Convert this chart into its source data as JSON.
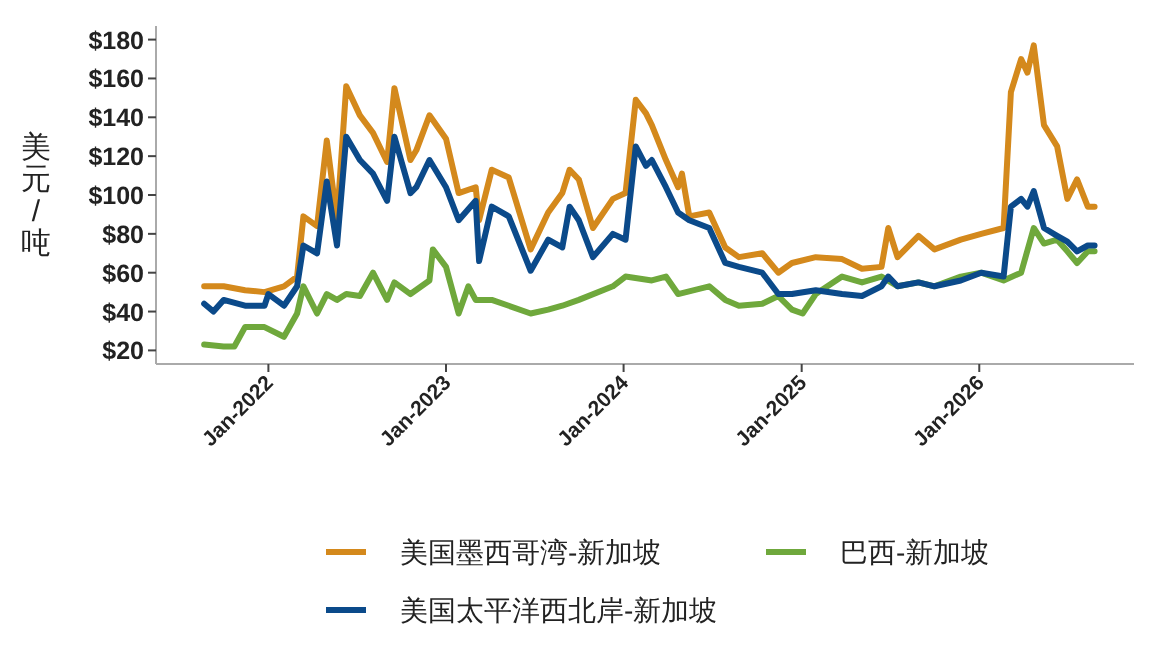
{
  "chart_data": {
    "type": "line",
    "ylabel": "美元/吨",
    "xlim": [
      "2021-05-15",
      "2026-11-15"
    ],
    "ylim": [
      13,
      187
    ],
    "xticks": [
      {
        "value": "2022-01-01",
        "label": "Jan-2022"
      },
      {
        "value": "2023-01-01",
        "label": "Jan-2023"
      },
      {
        "value": "2024-01-01",
        "label": "Jan-2024"
      },
      {
        "value": "2025-01-01",
        "label": "Jan-2025"
      },
      {
        "value": "2026-01-01",
        "label": "Jan-2026"
      }
    ],
    "yticks": [
      {
        "value": 20,
        "label": "$20"
      },
      {
        "value": 40,
        "label": "$40"
      },
      {
        "value": 60,
        "label": "$60"
      },
      {
        "value": 80,
        "label": "$80"
      },
      {
        "value": 100,
        "label": "$100"
      },
      {
        "value": 120,
        "label": "$120"
      },
      {
        "value": 140,
        "label": "$140"
      },
      {
        "value": 160,
        "label": "$160"
      },
      {
        "value": 180,
        "label": "$180"
      }
    ],
    "grid": false,
    "legend": "bottom",
    "marker": "none",
    "line_style": "solid",
    "series": [
      {
        "name": "美国墨西哥湾-新加坡",
        "color": "#d4891c",
        "x": [
          "2021-08-22",
          "2021-10-01",
          "2021-11-14",
          "2021-12-24",
          "2022-02-02",
          "2022-03-01",
          "2022-03-14",
          "2022-04-11",
          "2022-05-01",
          "2022-05-22",
          "2022-06-10",
          "2022-07-08",
          "2022-08-04",
          "2022-09-02",
          "2022-09-17",
          "2022-10-20",
          "2022-11-01",
          "2022-11-28",
          "2023-01-01",
          "2023-01-27",
          "2023-03-03",
          "2023-03-10",
          "2023-04-05",
          "2023-05-10",
          "2023-06-24",
          "2023-07-30",
          "2023-08-28",
          "2023-09-12",
          "2023-10-01",
          "2023-10-30",
          "2023-12-10",
          "2024-01-05",
          "2024-01-26",
          "2024-02-16",
          "2024-02-28",
          "2024-03-28",
          "2024-04-22",
          "2024-04-30",
          "2024-05-15",
          "2024-06-25",
          "2024-07-28",
          "2024-08-25",
          "2024-10-12",
          "2024-11-14",
          "2024-12-12",
          "2025-01-30",
          "2025-03-25",
          "2025-05-05",
          "2025-06-14",
          "2025-06-28",
          "2025-07-17",
          "2025-08-29",
          "2025-10-01",
          "2025-11-24",
          "2026-01-05",
          "2026-02-20",
          "2026-03-07",
          "2026-03-28",
          "2026-04-10",
          "2026-04-23",
          "2026-05-14",
          "2026-06-10",
          "2026-07-01",
          "2026-07-21",
          "2026-08-12",
          "2026-08-26"
        ],
        "values": [
          53,
          53,
          51,
          50,
          53,
          58,
          89,
          84,
          128,
          87,
          156,
          141,
          132,
          117,
          155,
          118,
          123,
          141,
          129,
          101,
          104,
          87,
          113,
          109,
          72,
          91,
          101,
          113,
          108,
          83,
          98,
          101,
          149,
          142,
          136,
          118,
          104,
          111,
          89,
          91,
          73,
          68,
          70,
          60,
          65,
          68,
          67,
          62,
          63,
          83,
          68,
          79,
          72,
          77,
          80,
          83,
          153,
          170,
          163,
          177,
          136,
          125,
          98,
          108,
          94,
          94
        ]
      },
      {
        "name": "巴西-新加坡",
        "color": "#6fa83c",
        "x": [
          "2021-08-22",
          "2021-10-01",
          "2021-10-23",
          "2021-11-14",
          "2021-12-24",
          "2022-02-02",
          "2022-03-01",
          "2022-03-14",
          "2022-04-11",
          "2022-05-01",
          "2022-05-22",
          "2022-06-10",
          "2022-07-08",
          "2022-08-04",
          "2022-09-02",
          "2022-09-17",
          "2022-10-20",
          "2022-11-28",
          "2022-12-05",
          "2023-01-01",
          "2023-01-27",
          "2023-02-16",
          "2023-03-03",
          "2023-04-05",
          "2023-05-10",
          "2023-06-24",
          "2023-07-30",
          "2023-08-28",
          "2023-10-01",
          "2023-12-10",
          "2024-01-05",
          "2024-02-28",
          "2024-03-28",
          "2024-04-22",
          "2024-06-25",
          "2024-07-28",
          "2024-08-25",
          "2024-10-12",
          "2024-11-14",
          "2024-12-12",
          "2025-01-03",
          "2025-01-30",
          "2025-03-25",
          "2025-05-05",
          "2025-06-14",
          "2025-07-17",
          "2025-08-29",
          "2025-10-01",
          "2025-11-24",
          "2026-01-05",
          "2026-02-20",
          "2026-03-28",
          "2026-04-23",
          "2026-05-14",
          "2026-06-10",
          "2026-07-01",
          "2026-07-21",
          "2026-08-12",
          "2026-08-26"
        ],
        "values": [
          23,
          22,
          22,
          32,
          32,
          27,
          39,
          53,
          39,
          49,
          46,
          49,
          48,
          60,
          46,
          55,
          49,
          56,
          72,
          63,
          39,
          53,
          46,
          46,
          43,
          39,
          41,
          43,
          46,
          53,
          58,
          56,
          58,
          49,
          53,
          46,
          43,
          44,
          48,
          41,
          39,
          49,
          58,
          55,
          58,
          53,
          55,
          53,
          58,
          60,
          56,
          60,
          83,
          75,
          77,
          71,
          65,
          71,
          71
        ]
      },
      {
        "name": "美国太平洋西北岸-新加坡",
        "color": "#0b4a8a",
        "x": [
          "2021-08-22",
          "2021-09-10",
          "2021-10-01",
          "2021-11-14",
          "2021-12-24",
          "2022-01-01",
          "2022-02-02",
          "2022-03-01",
          "2022-03-14",
          "2022-04-11",
          "2022-05-01",
          "2022-05-22",
          "2022-06-10",
          "2022-07-08",
          "2022-08-04",
          "2022-09-02",
          "2022-09-17",
          "2022-10-20",
          "2022-11-01",
          "2022-11-28",
          "2023-01-01",
          "2023-01-27",
          "2023-03-03",
          "2023-03-10",
          "2023-04-05",
          "2023-05-10",
          "2023-06-24",
          "2023-07-30",
          "2023-08-28",
          "2023-09-12",
          "2023-10-01",
          "2023-10-30",
          "2023-12-10",
          "2024-01-05",
          "2024-01-26",
          "2024-02-16",
          "2024-02-28",
          "2024-03-28",
          "2024-04-22",
          "2024-05-15",
          "2024-06-25",
          "2024-07-28",
          "2024-08-25",
          "2024-10-12",
          "2024-11-14",
          "2024-12-12",
          "2025-01-30",
          "2025-03-25",
          "2025-05-05",
          "2025-06-14",
          "2025-06-28",
          "2025-07-17",
          "2025-08-29",
          "2025-10-01",
          "2025-11-24",
          "2026-01-05",
          "2026-02-20",
          "2026-03-07",
          "2026-03-28",
          "2026-04-10",
          "2026-04-23",
          "2026-05-14",
          "2026-06-10",
          "2026-07-01",
          "2026-07-21",
          "2026-08-12",
          "2026-08-26"
        ],
        "values": [
          44,
          40,
          46,
          43,
          43,
          49,
          43,
          53,
          74,
          70,
          107,
          74,
          130,
          118,
          111,
          97,
          130,
          101,
          104,
          118,
          104,
          87,
          97,
          66,
          94,
          89,
          61,
          77,
          73,
          94,
          87,
          68,
          80,
          77,
          125,
          115,
          118,
          104,
          91,
          87,
          83,
          65,
          63,
          60,
          49,
          49,
          51,
          49,
          48,
          53,
          58,
          53,
          55,
          53,
          56,
          60,
          58,
          94,
          98,
          94,
          102,
          83,
          79,
          76,
          71,
          74,
          74
        ]
      }
    ]
  }
}
